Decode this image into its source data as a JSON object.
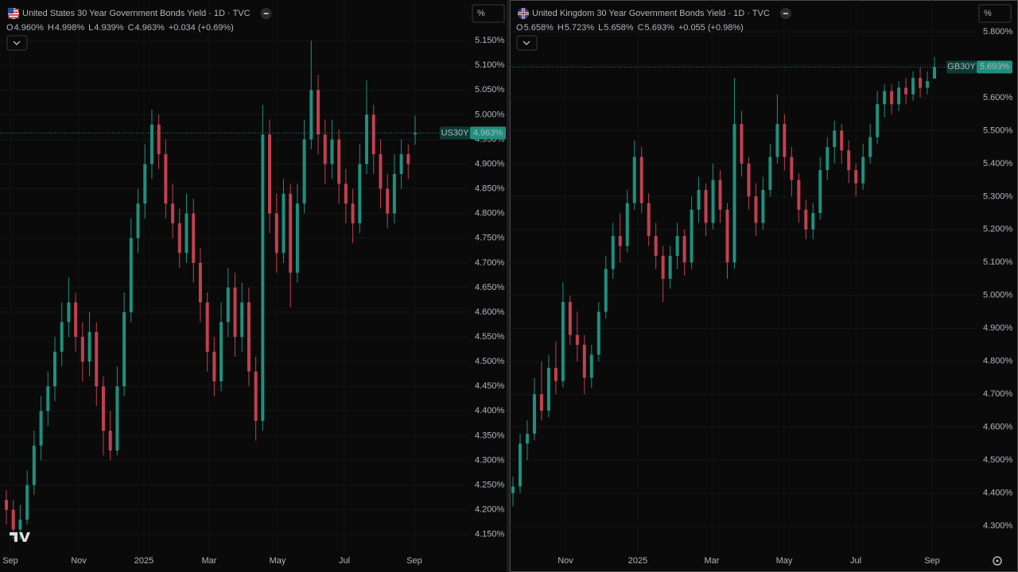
{
  "chart_data": [
    {
      "type": "candlestick",
      "title": "United States 30 Year Government Bonds Yield · 1D · TVC",
      "legend": [
        {
          "key": "O",
          "value": "4.960%"
        },
        {
          "key": "H",
          "value": "4.998%"
        },
        {
          "key": "L",
          "value": "4.939%"
        },
        {
          "key": "C",
          "value": "4.963%"
        }
      ],
      "change": "+0.034 (+0.69%)",
      "scale_button": "%",
      "symbol": "US30Y",
      "last_price": {
        "value": 4.963,
        "label": "4.963%"
      },
      "up_color": "#1f8f7e",
      "down_color": "#c2404f",
      "grid": true,
      "x_labels": [
        "Sep",
        "Nov",
        "2025",
        "Mar",
        "May",
        "Jul",
        "Sep"
      ],
      "ylim": [
        4.119,
        5.184
      ],
      "yticks": [
        {
          "value": 4.15,
          "label": "4.150%"
        },
        {
          "value": 4.2,
          "label": "4.200%"
        },
        {
          "value": 4.25,
          "label": "4.250%"
        },
        {
          "value": 4.3,
          "label": "4.300%"
        },
        {
          "value": 4.35,
          "label": "4.350%"
        },
        {
          "value": 4.4,
          "label": "4.400%"
        },
        {
          "value": 4.45,
          "label": "4.450%"
        },
        {
          "value": 4.5,
          "label": "4.500%"
        },
        {
          "value": 4.55,
          "label": "4.550%"
        },
        {
          "value": 4.6,
          "label": "4.600%"
        },
        {
          "value": 4.65,
          "label": "4.650%"
        },
        {
          "value": 4.7,
          "label": "4.700%"
        },
        {
          "value": 4.75,
          "label": "4.750%"
        },
        {
          "value": 4.8,
          "label": "4.800%"
        },
        {
          "value": 4.85,
          "label": "4.850%"
        },
        {
          "value": 4.9,
          "label": "4.900%"
        },
        {
          "value": 4.95,
          "label": "4.950%"
        },
        {
          "value": 5.0,
          "label": "5.000%"
        },
        {
          "value": 5.05,
          "label": "5.050%"
        },
        {
          "value": 5.1,
          "label": "5.100%"
        },
        {
          "value": 5.15,
          "label": "5.150%"
        }
      ],
      "ohlc": [
        [
          4.22,
          4.24,
          4.17,
          4.2
        ],
        [
          4.2,
          4.22,
          4.14,
          4.16
        ],
        [
          4.16,
          4.21,
          4.14,
          4.18
        ],
        [
          4.18,
          4.28,
          4.17,
          4.25
        ],
        [
          4.25,
          4.36,
          4.23,
          4.33
        ],
        [
          4.33,
          4.43,
          4.3,
          4.4
        ],
        [
          4.4,
          4.48,
          4.37,
          4.45
        ],
        [
          4.45,
          4.55,
          4.42,
          4.52
        ],
        [
          4.52,
          4.62,
          4.49,
          4.58
        ],
        [
          4.58,
          4.67,
          4.55,
          4.62
        ],
        [
          4.62,
          4.64,
          4.52,
          4.55
        ],
        [
          4.55,
          4.58,
          4.46,
          4.5
        ],
        [
          4.5,
          4.6,
          4.47,
          4.56
        ],
        [
          4.56,
          4.58,
          4.41,
          4.45
        ],
        [
          4.45,
          4.47,
          4.31,
          4.36
        ],
        [
          4.36,
          4.4,
          4.3,
          4.32
        ],
        [
          4.32,
          4.49,
          4.31,
          4.45
        ],
        [
          4.45,
          4.64,
          4.43,
          4.6
        ],
        [
          4.6,
          4.79,
          4.58,
          4.75
        ],
        [
          4.75,
          4.85,
          4.72,
          4.82
        ],
        [
          4.82,
          4.94,
          4.79,
          4.9
        ],
        [
          4.9,
          5.01,
          4.87,
          4.98
        ],
        [
          4.98,
          5.0,
          4.89,
          4.92
        ],
        [
          4.92,
          4.95,
          4.79,
          4.82
        ],
        [
          4.82,
          4.86,
          4.75,
          4.78
        ],
        [
          4.78,
          4.81,
          4.69,
          4.72
        ],
        [
          4.72,
          4.84,
          4.7,
          4.8
        ],
        [
          4.8,
          4.83,
          4.66,
          4.7
        ],
        [
          4.7,
          4.73,
          4.58,
          4.62
        ],
        [
          4.62,
          4.64,
          4.48,
          4.52
        ],
        [
          4.52,
          4.55,
          4.43,
          4.46
        ],
        [
          4.46,
          4.62,
          4.44,
          4.58
        ],
        [
          4.58,
          4.69,
          4.55,
          4.65
        ],
        [
          4.65,
          4.68,
          4.51,
          4.55
        ],
        [
          4.55,
          4.66,
          4.52,
          4.62
        ],
        [
          4.62,
          4.65,
          4.45,
          4.48
        ],
        [
          4.48,
          4.51,
          4.34,
          4.38
        ],
        [
          4.38,
          5.02,
          4.36,
          4.96
        ],
        [
          4.96,
          4.99,
          4.76,
          4.8
        ],
        [
          4.8,
          4.84,
          4.68,
          4.72
        ],
        [
          4.72,
          4.87,
          4.7,
          4.84
        ],
        [
          4.84,
          4.86,
          4.61,
          4.68
        ],
        [
          4.68,
          4.86,
          4.66,
          4.82
        ],
        [
          4.82,
          4.99,
          4.8,
          4.95
        ],
        [
          4.95,
          5.15,
          4.93,
          5.05
        ],
        [
          5.05,
          5.08,
          4.92,
          4.96
        ],
        [
          4.96,
          4.99,
          4.86,
          4.9
        ],
        [
          4.9,
          4.99,
          4.87,
          4.95
        ],
        [
          4.95,
          4.97,
          4.82,
          4.86
        ],
        [
          4.86,
          4.89,
          4.78,
          4.82
        ],
        [
          4.82,
          4.85,
          4.74,
          4.78
        ],
        [
          4.78,
          4.94,
          4.76,
          4.9
        ],
        [
          4.9,
          5.07,
          4.88,
          5.0
        ],
        [
          5.0,
          5.02,
          4.88,
          4.92
        ],
        [
          4.92,
          4.95,
          4.81,
          4.85
        ],
        [
          4.85,
          4.88,
          4.77,
          4.8
        ],
        [
          4.8,
          4.92,
          4.78,
          4.88
        ],
        [
          4.88,
          4.95,
          4.85,
          4.92
        ],
        [
          4.92,
          4.94,
          4.87,
          4.9
        ],
        [
          4.96,
          4.998,
          4.939,
          4.963
        ]
      ]
    },
    {
      "type": "candlestick",
      "title": "United Kingdom 30 Year Government Bonds Yield · 1D · TVC",
      "legend": [
        {
          "key": "O",
          "value": "5.658%"
        },
        {
          "key": "H",
          "value": "5.723%"
        },
        {
          "key": "L",
          "value": "5.658%"
        },
        {
          "key": "C",
          "value": "5.693%"
        }
      ],
      "change": "+0.055 (+0.98%)",
      "scale_button": "%",
      "symbol": "GB30Y",
      "last_price": {
        "value": 5.693,
        "label": "5.693%"
      },
      "up_color": "#1f8f7e",
      "down_color": "#c2404f",
      "grid": true,
      "x_labels": [
        "Nov",
        "2025",
        "Mar",
        "May",
        "Jul",
        "Sep"
      ],
      "ylim": [
        4.228,
        5.824
      ],
      "yticks": [
        {
          "value": 4.3,
          "label": "4.300%"
        },
        {
          "value": 4.4,
          "label": "4.400%"
        },
        {
          "value": 4.5,
          "label": "4.500%"
        },
        {
          "value": 4.6,
          "label": "4.600%"
        },
        {
          "value": 4.7,
          "label": "4.700%"
        },
        {
          "value": 4.8,
          "label": "4.800%"
        },
        {
          "value": 4.9,
          "label": "4.900%"
        },
        {
          "value": 5.0,
          "label": "5.000%"
        },
        {
          "value": 5.1,
          "label": "5.100%"
        },
        {
          "value": 5.2,
          "label": "5.200%"
        },
        {
          "value": 5.3,
          "label": "5.300%"
        },
        {
          "value": 5.4,
          "label": "5.400%"
        },
        {
          "value": 5.5,
          "label": "5.500%"
        },
        {
          "value": 5.6,
          "label": "5.600%"
        },
        {
          "value": 5.7,
          "label": "5.700%"
        },
        {
          "value": 5.8,
          "label": "5.800%"
        }
      ],
      "ohlc": [
        [
          4.4,
          4.45,
          4.36,
          4.42
        ],
        [
          4.42,
          4.58,
          4.4,
          4.55
        ],
        [
          4.55,
          4.62,
          4.5,
          4.58
        ],
        [
          4.58,
          4.75,
          4.56,
          4.7
        ],
        [
          4.7,
          4.8,
          4.62,
          4.65
        ],
        [
          4.65,
          4.82,
          4.63,
          4.78
        ],
        [
          4.78,
          4.86,
          4.7,
          4.74
        ],
        [
          4.74,
          5.04,
          4.72,
          4.98
        ],
        [
          4.98,
          5.0,
          4.85,
          4.88
        ],
        [
          4.88,
          4.95,
          4.8,
          4.85
        ],
        [
          4.85,
          4.88,
          4.7,
          4.75
        ],
        [
          4.75,
          4.85,
          4.72,
          4.82
        ],
        [
          4.82,
          4.98,
          4.8,
          4.95
        ],
        [
          4.95,
          5.12,
          4.93,
          5.08
        ],
        [
          5.08,
          5.22,
          5.05,
          5.18
        ],
        [
          5.18,
          5.25,
          5.1,
          5.15
        ],
        [
          5.15,
          5.32,
          5.13,
          5.28
        ],
        [
          5.28,
          5.47,
          5.26,
          5.42
        ],
        [
          5.42,
          5.45,
          5.25,
          5.28
        ],
        [
          5.28,
          5.31,
          5.15,
          5.18
        ],
        [
          5.18,
          5.22,
          5.08,
          5.12
        ],
        [
          5.12,
          5.15,
          4.98,
          5.05
        ],
        [
          5.05,
          5.15,
          5.02,
          5.12
        ],
        [
          5.12,
          5.22,
          5.08,
          5.18
        ],
        [
          5.18,
          5.2,
          5.06,
          5.1
        ],
        [
          5.1,
          5.3,
          5.08,
          5.26
        ],
        [
          5.26,
          5.36,
          5.22,
          5.32
        ],
        [
          5.32,
          5.34,
          5.18,
          5.22
        ],
        [
          5.22,
          5.4,
          5.2,
          5.35
        ],
        [
          5.35,
          5.38,
          5.22,
          5.26
        ],
        [
          5.26,
          5.28,
          5.05,
          5.1
        ],
        [
          5.1,
          5.66,
          5.08,
          5.52
        ],
        [
          5.52,
          5.56,
          5.36,
          5.4
        ],
        [
          5.4,
          5.42,
          5.26,
          5.3
        ],
        [
          5.3,
          5.34,
          5.18,
          5.22
        ],
        [
          5.22,
          5.36,
          5.2,
          5.32
        ],
        [
          5.32,
          5.46,
          5.3,
          5.42
        ],
        [
          5.42,
          5.61,
          5.4,
          5.52
        ],
        [
          5.52,
          5.55,
          5.38,
          5.42
        ],
        [
          5.42,
          5.45,
          5.3,
          5.35
        ],
        [
          5.35,
          5.37,
          5.22,
          5.26
        ],
        [
          5.26,
          5.29,
          5.17,
          5.2
        ],
        [
          5.2,
          5.28,
          5.17,
          5.25
        ],
        [
          5.25,
          5.42,
          5.23,
          5.38
        ],
        [
          5.38,
          5.48,
          5.35,
          5.45
        ],
        [
          5.45,
          5.53,
          5.4,
          5.5
        ],
        [
          5.5,
          5.52,
          5.4,
          5.44
        ],
        [
          5.44,
          5.47,
          5.34,
          5.38
        ],
        [
          5.38,
          5.4,
          5.3,
          5.34
        ],
        [
          5.34,
          5.46,
          5.32,
          5.42
        ],
        [
          5.42,
          5.52,
          5.4,
          5.48
        ],
        [
          5.48,
          5.62,
          5.46,
          5.58
        ],
        [
          5.58,
          5.64,
          5.54,
          5.62
        ],
        [
          5.62,
          5.64,
          5.55,
          5.58
        ],
        [
          5.58,
          5.65,
          5.56,
          5.63
        ],
        [
          5.63,
          5.66,
          5.58,
          5.61
        ],
        [
          5.61,
          5.68,
          5.59,
          5.66
        ],
        [
          5.66,
          5.69,
          5.6,
          5.63
        ],
        [
          5.63,
          5.68,
          5.61,
          5.65
        ],
        [
          5.658,
          5.723,
          5.658,
          5.693
        ]
      ]
    }
  ]
}
